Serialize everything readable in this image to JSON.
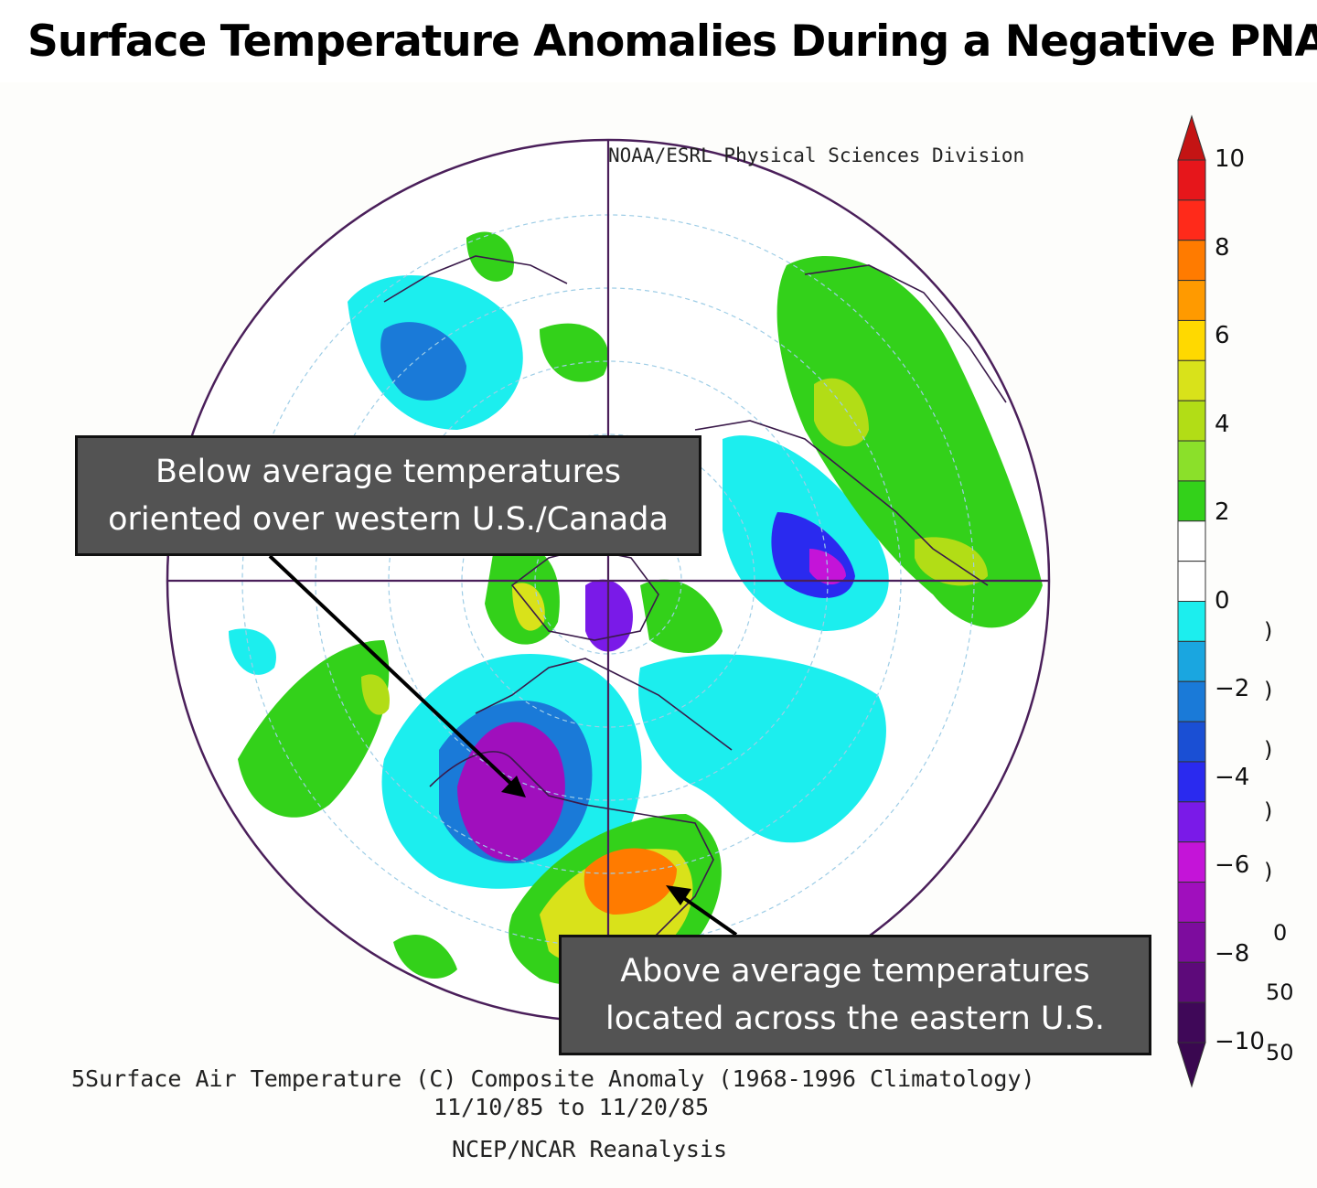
{
  "title": "Surface Temperature Anomalies During a Negative PNA",
  "organization": "NOAA/ESRL Physical Sciences Division",
  "callouts": {
    "west": [
      "Below average temperatures",
      "oriented over western U.S./Canada"
    ],
    "east": [
      "Above average temperatures",
      "located across the eastern U.S."
    ]
  },
  "caption": {
    "line1": "5Surface Air Temperature (C) Composite Anomaly (1968-1996 Climatology)",
    "line2": "11/10/85  to 11/20/85",
    "line3": "NCEP/NCAR Reanalysis"
  },
  "colorbar": {
    "ticks": [
      "10",
      "8",
      "6",
      "4",
      "2",
      "0",
      "-2",
      "-4",
      "-6",
      "-8",
      "-10"
    ],
    "colors": [
      "#e6161b",
      "#ff2a1a",
      "#ff7b00",
      "#ff9a00",
      "#ffd900",
      "#d9e21a",
      "#b2dd16",
      "#8be02a",
      "#33d11a",
      "#ffffff",
      "#ffffff",
      "#1ceeee",
      "#1aa6e0",
      "#1a7ad8",
      "#1a4fd4",
      "#2a2aef",
      "#7a1ae8",
      "#c414d8",
      "#a00fbd",
      "#7d0c9e",
      "#5d0a7a",
      "#3f0858"
    ],
    "top_arrow_color": "#c41414",
    "bottom_arrow_color": "#3a0850"
  },
  "edge_fragments": [
    "0",
    "50",
    "50"
  ]
}
